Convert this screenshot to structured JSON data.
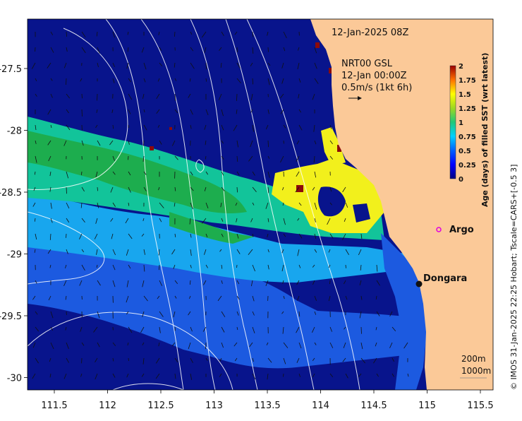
{
  "map": {
    "timestamp": "12-Jan-2025 08Z",
    "product": {
      "line1": "NRT00 GSL",
      "line2": "12-Jan 00:00Z",
      "line3": "0.5m/s (1kt 6h)"
    },
    "axes": {
      "lon_ticks": [
        "111.5",
        "112",
        "112.5",
        "113",
        "113.5",
        "114",
        "114.5",
        "115",
        "115.5"
      ],
      "lat_ticks": [
        "-27.5",
        "-28",
        "-28.5",
        "-29",
        "-29.5",
        "-30"
      ]
    },
    "labels": {
      "argo": "Argo",
      "dongara": "Dongara",
      "isobath_1": "200m",
      "isobath_2": "1000m"
    },
    "colorbar": {
      "title": "Age (days) of filled SST (wrt latest)",
      "ticks": [
        "0",
        "0.25",
        "0.5",
        "0.75",
        "1",
        "1.25",
        "1.5",
        "1.75",
        "2"
      ]
    },
    "credit": "© IMOS 31-Jan-2025 22:25 Hobart; Tscale=CARS+[-0.5 3]",
    "colors": {
      "land": "#fbc998",
      "deep_navy": "#08148c",
      "blue": "#1c5ae0",
      "light_blue": "#18a6ee",
      "teal": "#12c49a",
      "green": "#1dad4e",
      "yellow": "#f2f01c",
      "dark_red": "#8c0a0a"
    }
  }
}
